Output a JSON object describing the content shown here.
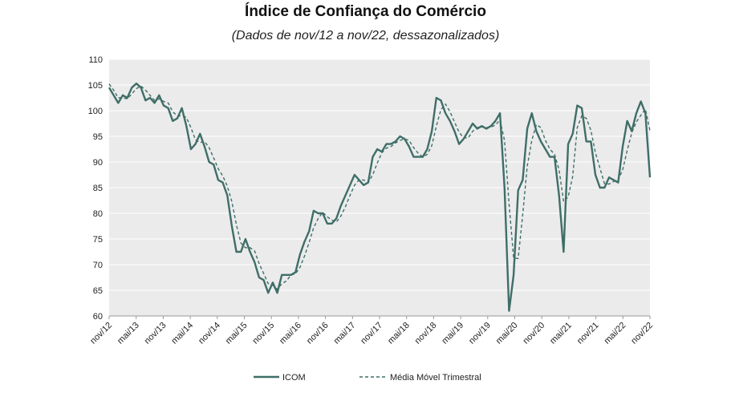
{
  "chart_data": {
    "type": "line",
    "title": "Índice de Confiança do Comércio",
    "subtitle": "(Dados de nov/12 a nov/22, dessazonalizados)",
    "xlabel": "",
    "ylabel": "",
    "ylim": [
      60,
      110
    ],
    "yticks": [
      60,
      65,
      70,
      75,
      80,
      85,
      90,
      95,
      100,
      105,
      110
    ],
    "x_tick_labels": [
      "nov/12",
      "mai/13",
      "nov/13",
      "mai/14",
      "nov/14",
      "mai/15",
      "nov/15",
      "mai/16",
      "nov/16",
      "mai/17",
      "nov/17",
      "mai/18",
      "nov/18",
      "mai/19",
      "nov/19",
      "mai/20",
      "nov/20",
      "mai/21",
      "nov/21",
      "mai/22",
      "nov/22"
    ],
    "grid": "horizontal",
    "legend_position": "bottom",
    "colors": {
      "icom": "#3f6e67",
      "mm3": "#3f6e67",
      "plot_bg": "#ebebeb",
      "grid": "#ffffff"
    },
    "series": [
      {
        "name": "ICOM",
        "style": "solid",
        "values": [
          104.5,
          103.0,
          101.5,
          103.0,
          102.5,
          104.5,
          105.3,
          104.5,
          102.0,
          102.5,
          101.5,
          103.0,
          101.0,
          100.5,
          98.0,
          98.5,
          100.5,
          97.0,
          92.5,
          93.5,
          95.5,
          93.0,
          90.0,
          89.5,
          86.5,
          86.0,
          83.5,
          77.5,
          72.5,
          72.5,
          75.0,
          72.5,
          70.5,
          67.5,
          67.0,
          64.5,
          66.5,
          64.5,
          68.0,
          68.0,
          68.0,
          68.5,
          72.0,
          74.5,
          76.5,
          80.5,
          80.0,
          80.0,
          78.0,
          78.0,
          79.0,
          81.5,
          83.5,
          85.5,
          87.5,
          86.5,
          85.5,
          86.0,
          91.0,
          92.5,
          92.0,
          93.5,
          93.5,
          94.0,
          95.0,
          94.5,
          93.0,
          91.0,
          91.0,
          91.0,
          92.5,
          96.0,
          102.5,
          102.0,
          99.5,
          98.0,
          96.0,
          93.5,
          94.5,
          96.0,
          97.5,
          96.5,
          97.0,
          96.5,
          97.0,
          98.0,
          99.5,
          85.0,
          61.0,
          68.0,
          84.5,
          86.5,
          96.5,
          99.5,
          96.0,
          94.0,
          92.5,
          91.0,
          91.0,
          83.5,
          72.5,
          93.5,
          95.5,
          101.0,
          100.5,
          94.0,
          94.0,
          87.5,
          85.0,
          85.0,
          87.0,
          86.5,
          86.0,
          93.0,
          98.0,
          96.0,
          99.5,
          101.8,
          99.5,
          87.0
        ]
      },
      {
        "name": "Média Móvel Trimestral",
        "style": "dashed",
        "values": [
          105.2,
          104.0,
          102.5,
          102.5,
          102.3,
          103.3,
          104.3,
          104.8,
          104.0,
          103.0,
          102.0,
          102.3,
          101.8,
          101.5,
          99.8,
          99.0,
          99.0,
          98.7,
          96.7,
          94.3,
          93.8,
          94.0,
          92.8,
          90.8,
          88.7,
          87.3,
          85.3,
          82.3,
          77.8,
          74.2,
          73.3,
          73.3,
          72.7,
          70.2,
          68.3,
          66.3,
          66.0,
          65.2,
          66.3,
          66.8,
          68.0,
          68.2,
          69.5,
          71.7,
          74.3,
          77.2,
          79.0,
          80.2,
          79.3,
          78.7,
          78.3,
          79.5,
          81.3,
          83.5,
          85.5,
          86.5,
          86.5,
          86.0,
          87.5,
          89.8,
          91.8,
          92.7,
          93.0,
          93.7,
          94.2,
          94.5,
          94.2,
          92.8,
          91.7,
          91.0,
          91.5,
          93.2,
          97.0,
          100.2,
          101.3,
          99.8,
          97.8,
          95.8,
          94.7,
          94.7,
          96.0,
          96.7,
          97.0,
          96.7,
          96.8,
          97.2,
          98.2,
          94.2,
          81.8,
          71.3,
          71.2,
          79.7,
          89.2,
          94.2,
          97.3,
          96.7,
          94.2,
          92.5,
          91.5,
          88.5,
          82.3,
          83.2,
          87.2,
          96.7,
          99.0,
          98.5,
          96.2,
          91.8,
          88.8,
          85.8,
          85.7,
          86.2,
          86.5,
          88.5,
          92.3,
          95.7,
          97.8,
          99.1,
          100.3,
          96.1
        ]
      }
    ]
  }
}
